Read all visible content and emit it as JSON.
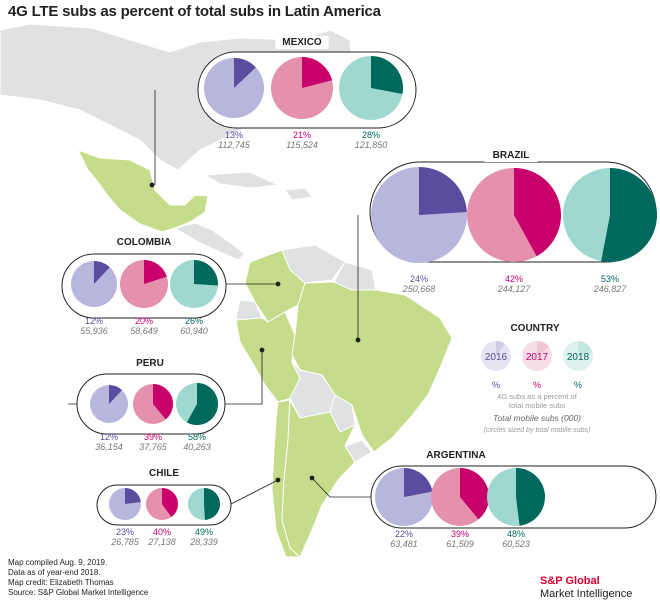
{
  "title": "4G LTE subs as percent of total subs in Latin America",
  "colors": {
    "land": "#c5dc8a",
    "other_land": "#e0e1e3",
    "land_border": "#ffffff",
    "y2016": {
      "light": "#b9b6dd",
      "dark": "#5a4c9e"
    },
    "y2017": {
      "light": "#e590ad",
      "dark": "#c8006c"
    },
    "y2018": {
      "light": "#9ed8cf",
      "dark": "#00685c"
    }
  },
  "countries": [
    {
      "name": "MEXICO",
      "pcts": [
        "13%",
        "21%",
        "28%"
      ],
      "subs": [
        "112,745",
        "115,524",
        "121,850"
      ]
    },
    {
      "name": "BRAZIL",
      "pcts": [
        "24%",
        "42%",
        "53%"
      ],
      "subs": [
        "250,668",
        "244,127",
        "246,827"
      ]
    },
    {
      "name": "COLOMBIA",
      "pcts": [
        "12%",
        "20%",
        "26%"
      ],
      "subs": [
        "55,936",
        "58,649",
        "60,940"
      ]
    },
    {
      "name": "PERU",
      "pcts": [
        "12%",
        "39%",
        "58%"
      ],
      "subs": [
        "36,154",
        "37,765",
        "40,263"
      ]
    },
    {
      "name": "CHILE",
      "pcts": [
        "23%",
        "40%",
        "49%"
      ],
      "subs": [
        "26,785",
        "27,138",
        "28,339"
      ]
    },
    {
      "name": "ARGENTINA",
      "pcts": [
        "22%",
        "39%",
        "48%"
      ],
      "subs": [
        "63,481",
        "61,509",
        "60,523"
      ]
    }
  ],
  "legend": {
    "title": "COUNTRY",
    "years": [
      "2016",
      "2017",
      "2018"
    ],
    "pct_symbol": "%",
    "note_line1": "4G subs as a percent of",
    "note_line2": "total mobile subs",
    "note_line3": "Total mobile subs (000)",
    "note_line4": "(circles sized by total mobile subs)"
  },
  "footnotes": [
    "Map compiled Aug. 9, 2019.",
    "Data as of year-end 2018.",
    "Map credit: Elizabeth Thomas",
    "Source: S&P Global Market Intelligence"
  ],
  "brand": {
    "line1": "S&P Global",
    "line2": "Market Intelligence"
  }
}
